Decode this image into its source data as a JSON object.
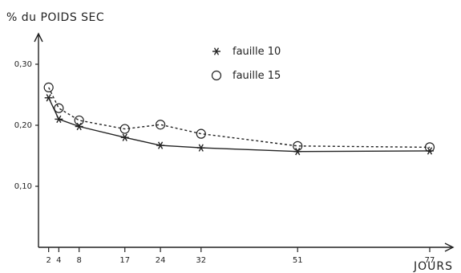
{
  "chart_data": {
    "type": "line",
    "title": "% du POIDS SEC",
    "xlabel": "JOURS",
    "ylabel": "% du POIDS SEC",
    "xlim": [
      0,
      80
    ],
    "ylim": [
      0,
      0.35
    ],
    "x_ticks": [
      2,
      4,
      8,
      17,
      24,
      32,
      51,
      77
    ],
    "y_ticks": [
      {
        "value": 0.1,
        "label": "0,10"
      },
      {
        "value": 0.2,
        "label": "0,20"
      },
      {
        "value": 0.3,
        "label": "0,30"
      }
    ],
    "legend_position": "top-center",
    "series": [
      {
        "name": "fauille 10",
        "marker": "asterisk",
        "line_style": "solid",
        "x": [
          2,
          4,
          8,
          17,
          24,
          32,
          51,
          77
        ],
        "values": [
          0.245,
          0.21,
          0.198,
          0.18,
          0.167,
          0.163,
          0.157,
          0.158
        ]
      },
      {
        "name": "fauille 15",
        "marker": "circle",
        "line_style": "dashed",
        "x": [
          2,
          4,
          8,
          17,
          24,
          32,
          51,
          77
        ],
        "values": [
          0.262,
          0.228,
          0.208,
          0.194,
          0.201,
          0.186,
          0.166,
          0.164
        ]
      }
    ],
    "colors": {
      "ink": "#222222",
      "background": "#ffffff"
    }
  }
}
